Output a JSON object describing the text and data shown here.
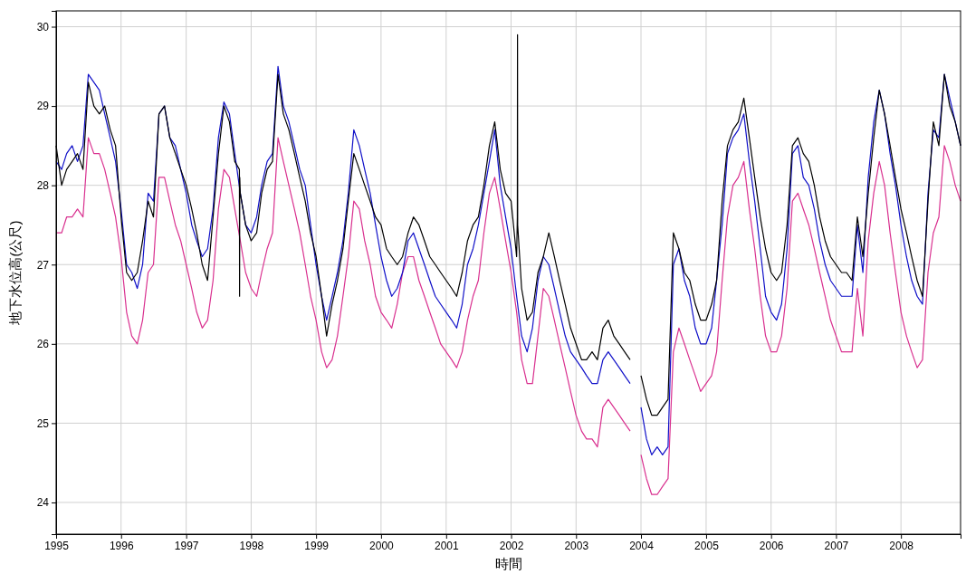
{
  "chart_data": {
    "type": "line",
    "xlabel": "時間",
    "ylabel": "地下水位高(公尺)",
    "grid": true,
    "marker": "none",
    "line_style": "solid",
    "xlim": [
      "1995-01",
      "2008-12"
    ],
    "ylim": [
      23.6,
      30.2
    ],
    "xticks": [
      "1995",
      "1996",
      "1997",
      "1998",
      "1999",
      "2000",
      "2001",
      "2002",
      "2003",
      "2004",
      "2005",
      "2006",
      "2007",
      "2008"
    ],
    "yticks": [
      24,
      25,
      26,
      27,
      28,
      29,
      30
    ],
    "x": [
      "1995-01",
      "1995-02",
      "1995-03",
      "1995-04",
      "1995-05",
      "1995-06",
      "1995-07",
      "1995-08",
      "1995-09",
      "1995-10",
      "1995-11",
      "1995-12",
      "1996-01",
      "1996-02",
      "1996-03",
      "1996-04",
      "1996-05",
      "1996-06",
      "1996-07",
      "1996-08",
      "1996-09",
      "1996-10",
      "1996-11",
      "1996-12",
      "1997-01",
      "1997-02",
      "1997-03",
      "1997-04",
      "1997-05",
      "1997-06",
      "1997-07",
      "1997-08",
      "1997-09",
      "1997-10",
      "1997-11",
      "1997-12",
      "1998-01",
      "1998-02",
      "1998-03",
      "1998-04",
      "1998-05",
      "1998-06",
      "1998-07",
      "1998-08",
      "1998-09",
      "1998-10",
      "1998-11",
      "1998-12",
      "1999-01",
      "1999-02",
      "1999-03",
      "1999-04",
      "1999-05",
      "1999-06",
      "1999-07",
      "1999-08",
      "1999-09",
      "1999-10",
      "1999-11",
      "1999-12",
      "2000-01",
      "2000-02",
      "2000-03",
      "2000-04",
      "2000-05",
      "2000-06",
      "2000-07",
      "2000-08",
      "2000-09",
      "2000-10",
      "2000-11",
      "2000-12",
      "2001-01",
      "2001-02",
      "2001-03",
      "2001-04",
      "2001-05",
      "2001-06",
      "2001-07",
      "2001-08",
      "2001-09",
      "2001-10",
      "2001-11",
      "2001-12",
      "2002-01",
      "2002-02",
      "2002-03",
      "2002-04",
      "2002-05",
      "2002-06",
      "2002-07",
      "2002-08",
      "2002-09",
      "2002-10",
      "2002-11",
      "2002-12",
      "2003-01",
      "2003-02",
      "2003-03",
      "2003-04",
      "2003-05",
      "2003-06",
      "2003-07",
      "2003-08",
      "2003-09",
      "2003-10",
      "2003-11",
      "2003-12",
      "2004-01",
      "2004-02",
      "2004-03",
      "2004-04",
      "2004-05",
      "2004-06",
      "2004-07",
      "2004-08",
      "2004-09",
      "2004-10",
      "2004-11",
      "2004-12",
      "2005-01",
      "2005-02",
      "2005-03",
      "2005-04",
      "2005-05",
      "2005-06",
      "2005-07",
      "2005-08",
      "2005-09",
      "2005-10",
      "2005-11",
      "2005-12",
      "2006-01",
      "2006-02",
      "2006-03",
      "2006-04",
      "2006-05",
      "2006-06",
      "2006-07",
      "2006-08",
      "2006-09",
      "2006-10",
      "2006-11",
      "2006-12",
      "2007-01",
      "2007-02",
      "2007-03",
      "2007-04",
      "2007-05",
      "2007-06",
      "2007-07",
      "2007-08",
      "2007-09",
      "2007-10",
      "2007-11",
      "2007-12",
      "2008-01",
      "2008-02",
      "2008-03",
      "2008-04",
      "2008-05",
      "2008-06",
      "2008-07",
      "2008-08",
      "2008-09",
      "2008-10",
      "2008-11",
      "2008-12"
    ],
    "series": [
      {
        "color": "#d9308f",
        "values": [
          27.4,
          27.4,
          27.6,
          27.6,
          27.7,
          27.6,
          28.6,
          28.4,
          28.4,
          28.2,
          27.9,
          27.6,
          27.1,
          26.4,
          26.1,
          26.0,
          26.3,
          26.9,
          27.0,
          28.1,
          28.1,
          27.8,
          27.5,
          27.3,
          27.0,
          26.7,
          26.4,
          26.2,
          26.3,
          26.8,
          27.7,
          28.2,
          28.1,
          27.7,
          27.3,
          26.9,
          26.7,
          26.6,
          26.9,
          27.2,
          27.4,
          28.6,
          28.3,
          28.0,
          27.7,
          27.4,
          27.0,
          26.6,
          26.3,
          25.9,
          25.7,
          25.8,
          26.1,
          26.6,
          27.1,
          27.8,
          27.7,
          27.3,
          27.0,
          26.6,
          26.4,
          26.3,
          26.2,
          26.5,
          26.9,
          27.1,
          27.1,
          26.8,
          26.6,
          26.4,
          26.2,
          26.0,
          25.9,
          25.8,
          25.7,
          25.9,
          26.3,
          26.6,
          26.8,
          27.4,
          27.9,
          28.1,
          27.7,
          27.3,
          26.9,
          26.4,
          25.8,
          25.5,
          25.5,
          26.1,
          26.7,
          26.6,
          26.3,
          26.0,
          25.7,
          25.4,
          25.1,
          24.9,
          24.8,
          24.8,
          24.7,
          25.2,
          25.3,
          25.2,
          25.1,
          25.0,
          24.9,
          null,
          24.6,
          24.3,
          24.1,
          24.1,
          24.2,
          24.3,
          25.9,
          26.2,
          26.0,
          25.8,
          25.6,
          25.4,
          25.5,
          25.6,
          25.9,
          26.8,
          27.6,
          28.0,
          28.1,
          28.3,
          27.7,
          27.2,
          26.6,
          26.1,
          25.9,
          25.9,
          26.1,
          26.7,
          27.8,
          27.9,
          27.7,
          27.5,
          27.2,
          26.9,
          26.6,
          26.3,
          26.1,
          25.9,
          25.9,
          25.9,
          26.7,
          26.1,
          27.3,
          27.9,
          28.3,
          28.0,
          27.4,
          26.9,
          26.4,
          26.1,
          25.9,
          25.7,
          25.8,
          26.9,
          27.4,
          27.6,
          28.5,
          28.3,
          28.0,
          27.8
        ]
      },
      {
        "color": "#1010c8",
        "values": [
          28.3,
          28.2,
          28.4,
          28.5,
          28.3,
          28.5,
          29.4,
          29.3,
          29.2,
          28.9,
          28.6,
          28.3,
          27.7,
          27.0,
          26.9,
          26.7,
          27.0,
          27.9,
          27.8,
          28.9,
          29.0,
          28.6,
          28.5,
          28.2,
          27.9,
          27.5,
          27.3,
          27.1,
          27.2,
          27.7,
          28.6,
          29.05,
          28.9,
          28.4,
          27.9,
          27.5,
          27.4,
          27.6,
          28.0,
          28.3,
          28.4,
          29.5,
          29.0,
          28.8,
          28.5,
          28.2,
          28.0,
          27.5,
          27.0,
          26.6,
          26.3,
          26.6,
          26.9,
          27.3,
          27.9,
          28.7,
          28.5,
          28.2,
          27.9,
          27.5,
          27.1,
          26.8,
          26.6,
          26.7,
          26.9,
          27.3,
          27.4,
          27.2,
          27.0,
          26.8,
          26.6,
          26.5,
          26.4,
          26.3,
          26.2,
          26.5,
          27.0,
          27.2,
          27.5,
          27.9,
          28.3,
          28.7,
          28.0,
          27.6,
          27.2,
          26.6,
          26.1,
          25.9,
          26.2,
          26.8,
          27.1,
          27.0,
          26.7,
          26.4,
          26.1,
          25.9,
          25.8,
          25.7,
          25.6,
          25.5,
          25.5,
          25.8,
          25.9,
          25.8,
          25.7,
          25.6,
          25.5,
          null,
          25.2,
          24.8,
          24.6,
          24.7,
          24.6,
          24.7,
          27.0,
          27.2,
          26.8,
          26.6,
          26.2,
          26.0,
          26.0,
          26.2,
          26.8,
          27.5,
          28.4,
          28.6,
          28.7,
          28.9,
          28.3,
          27.8,
          27.2,
          26.6,
          26.4,
          26.3,
          26.5,
          27.2,
          28.4,
          28.5,
          28.1,
          28.0,
          27.7,
          27.3,
          27.0,
          26.8,
          26.7,
          26.6,
          26.6,
          26.6,
          27.5,
          26.9,
          28.1,
          28.8,
          29.2,
          28.9,
          28.4,
          28.0,
          27.5,
          27.1,
          26.8,
          26.6,
          26.5,
          27.9,
          28.7,
          28.6,
          29.4,
          29.1,
          28.8,
          28.5
        ]
      },
      {
        "color": "#000000",
        "x": [
          "1995-01",
          "1995-02",
          "1995-03",
          "1995-04",
          "1995-05",
          "1995-06",
          "1995-07",
          "1995-08",
          "1995-09",
          "1995-10",
          "1995-11",
          "1995-12",
          "1996-01",
          "1996-02",
          "1996-03",
          "1996-04",
          "1996-05",
          "1996-06",
          "1996-07",
          "1996-08",
          "1996-09",
          "1996-10",
          "1996-11",
          "1996-12",
          "1997-01",
          "1997-02",
          "1997-03",
          "1997-04",
          "1997-05",
          "1997-06",
          "1997-07",
          "1997-08",
          "1997-09",
          "1997-10",
          "1997-10-27",
          "1997-10-28",
          "1997-10-29",
          "1997-11",
          "1997-12",
          "1998-01",
          "1998-02",
          "1998-03",
          "1998-04",
          "1998-05",
          "1998-06",
          "1998-07",
          "1998-08",
          "1998-09",
          "1998-10",
          "1998-11",
          "1998-12",
          "1999-01",
          "1999-02",
          "1999-03",
          "1999-04",
          "1999-05",
          "1999-06",
          "1999-07",
          "1999-08",
          "1999-09",
          "1999-10",
          "1999-11",
          "1999-12",
          "2000-01",
          "2000-02",
          "2000-03",
          "2000-04",
          "2000-05",
          "2000-06",
          "2000-07",
          "2000-08",
          "2000-09",
          "2000-10",
          "2000-11",
          "2000-12",
          "2001-01",
          "2001-02",
          "2001-03",
          "2001-04",
          "2001-05",
          "2001-06",
          "2001-07",
          "2001-08",
          "2001-09",
          "2001-10",
          "2001-11",
          "2001-12",
          "2002-01",
          "2002-02",
          "2002-02-05",
          "2002-02-06",
          "2002-02-07",
          "2002-03",
          "2002-04",
          "2002-05",
          "2002-06",
          "2002-07",
          "2002-08",
          "2002-09",
          "2002-10",
          "2002-11",
          "2002-12",
          "2003-01",
          "2003-02",
          "2003-03",
          "2003-04",
          "2003-05",
          "2003-06",
          "2003-07",
          "2003-08",
          "2003-09",
          "2003-10",
          "2003-11",
          "2003-12",
          "2004-01",
          "2004-02",
          "2004-03",
          "2004-04",
          "2004-05",
          "2004-06",
          "2004-07",
          "2004-08",
          "2004-09",
          "2004-10",
          "2004-11",
          "2004-12",
          "2005-01",
          "2005-02",
          "2005-03",
          "2005-04",
          "2005-05",
          "2005-06",
          "2005-07",
          "2005-08",
          "2005-09",
          "2005-10",
          "2005-11",
          "2005-12",
          "2006-01",
          "2006-02",
          "2006-03",
          "2006-04",
          "2006-05",
          "2006-06",
          "2006-07",
          "2006-08",
          "2006-09",
          "2006-10",
          "2006-11",
          "2006-12",
          "2007-01",
          "2007-02",
          "2007-03",
          "2007-04",
          "2007-05",
          "2007-06",
          "2007-07",
          "2007-08",
          "2007-09",
          "2007-10",
          "2007-11",
          "2007-12",
          "2008-01",
          "2008-02",
          "2008-03",
          "2008-04",
          "2008-05",
          "2008-06",
          "2008-07",
          "2008-08",
          "2008-09",
          "2008-10",
          "2008-11",
          "2008-12"
        ],
        "values": [
          28.5,
          28.0,
          28.2,
          28.3,
          28.4,
          28.2,
          29.3,
          29.0,
          28.9,
          29.0,
          28.7,
          28.5,
          27.6,
          26.9,
          26.8,
          26.9,
          27.3,
          27.8,
          27.6,
          28.9,
          29.0,
          28.6,
          28.4,
          28.2,
          28.0,
          27.7,
          27.4,
          27.0,
          26.8,
          27.6,
          28.4,
          29.0,
          28.8,
          28.3,
          28.2,
          26.6,
          28.1,
          27.9,
          27.5,
          27.3,
          27.4,
          27.9,
          28.2,
          28.3,
          29.4,
          28.9,
          28.7,
          28.4,
          28.1,
          27.8,
          27.4,
          27.1,
          26.6,
          26.1,
          26.5,
          26.8,
          27.2,
          27.8,
          28.4,
          28.2,
          28.0,
          27.8,
          27.6,
          27.5,
          27.2,
          27.1,
          27.0,
          27.1,
          27.4,
          27.6,
          27.5,
          27.3,
          27.1,
          27.0,
          26.9,
          26.8,
          26.7,
          26.6,
          26.9,
          27.3,
          27.5,
          27.6,
          28.0,
          28.5,
          28.8,
          28.2,
          27.9,
          27.8,
          27.1,
          27.6,
          29.9,
          27.5,
          26.7,
          26.3,
          26.4,
          26.9,
          27.1,
          27.4,
          27.1,
          26.8,
          26.5,
          26.2,
          26.0,
          25.8,
          25.8,
          25.9,
          25.8,
          26.2,
          26.3,
          26.1,
          26.0,
          25.9,
          25.8,
          null,
          25.6,
          25.3,
          25.1,
          25.1,
          25.2,
          25.3,
          27.4,
          27.2,
          26.9,
          26.8,
          26.5,
          26.3,
          26.3,
          26.5,
          26.8,
          27.8,
          28.5,
          28.7,
          28.8,
          29.1,
          28.6,
          28.1,
          27.6,
          27.2,
          26.9,
          26.8,
          26.9,
          27.5,
          28.5,
          28.6,
          28.4,
          28.3,
          28.0,
          27.6,
          27.3,
          27.1,
          27.0,
          26.9,
          26.9,
          26.8,
          27.6,
          27.1,
          27.9,
          28.6,
          29.2,
          28.9,
          28.5,
          28.1,
          27.7,
          27.4,
          27.1,
          26.8,
          26.6,
          27.8,
          28.8,
          28.5,
          29.4,
          29.0,
          28.8,
          28.5
        ]
      }
    ]
  }
}
